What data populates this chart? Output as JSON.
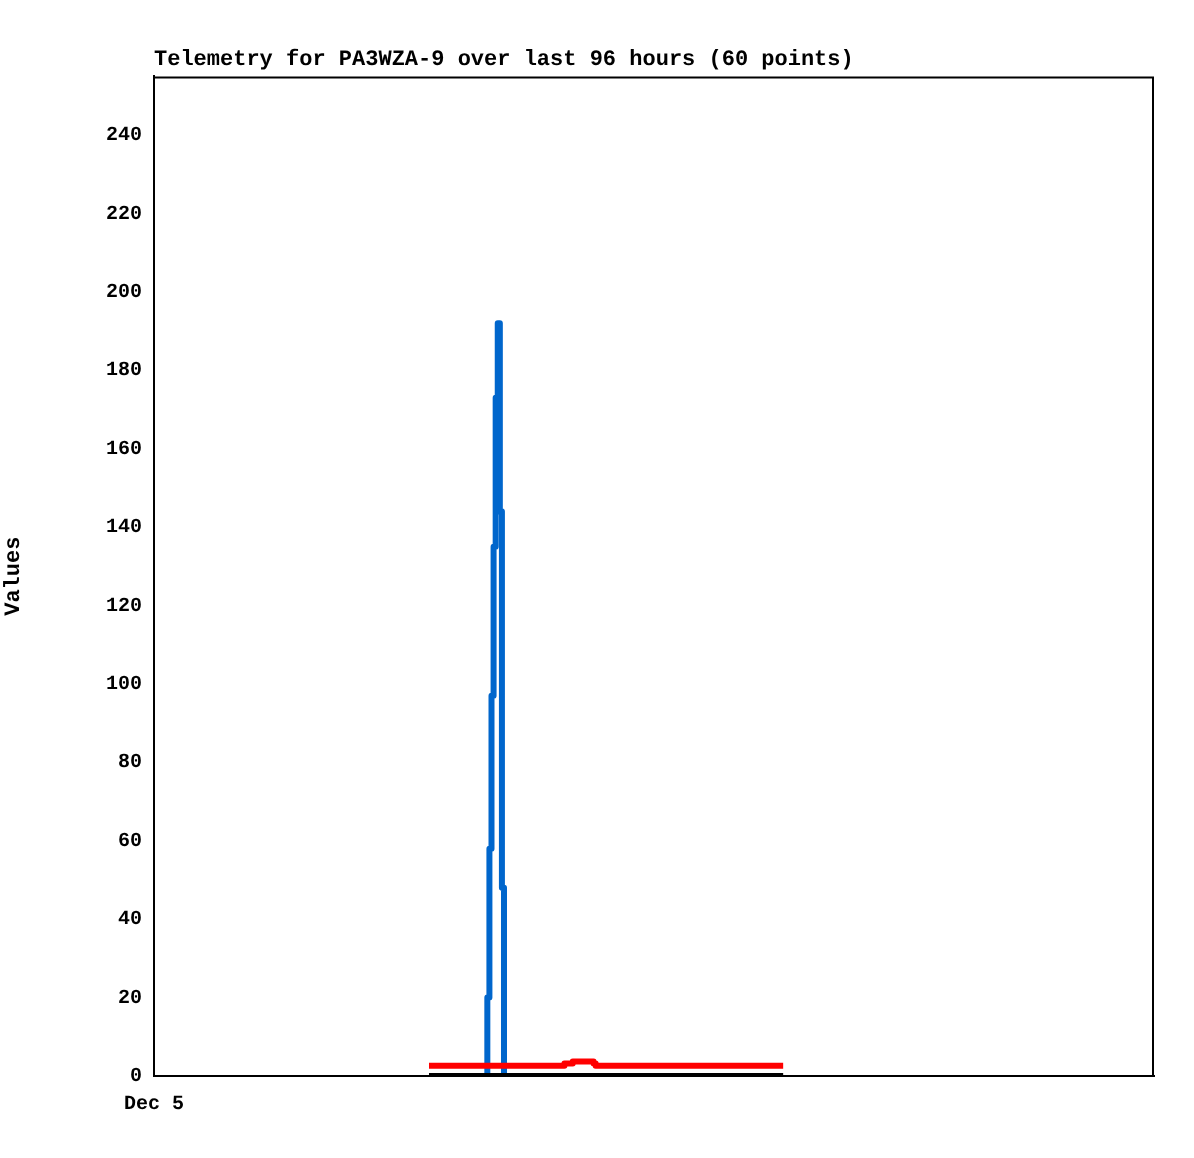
{
  "chart_data": {
    "type": "step",
    "title": "Telemetry for PA3WZA-9 over last 96 hours (60 points)",
    "ylabel": "Values",
    "categories": [
      "Dec 5",
      null,
      null,
      null,
      null,
      null,
      null,
      null,
      null,
      null,
      null,
      null,
      null,
      null,
      null,
      null,
      null,
      null,
      null,
      null,
      null,
      null,
      null,
      null,
      null,
      null,
      null,
      null,
      null,
      null,
      null,
      null,
      null,
      null,
      null,
      null,
      null,
      null,
      null,
      null,
      null,
      null,
      null,
      null,
      null,
      null,
      null,
      null,
      null,
      null,
      null,
      null,
      null,
      null,
      null,
      null,
      null,
      null,
      null,
      null,
      null,
      null,
      null,
      null,
      null,
      null,
      null,
      null,
      null,
      null,
      null,
      null,
      null,
      null,
      null,
      null,
      null,
      null,
      null,
      null,
      null,
      null,
      null,
      null,
      null,
      null,
      null,
      null,
      null,
      null,
      null,
      null,
      null,
      null,
      null,
      null,
      null,
      null,
      null,
      null,
      null,
      null,
      null,
      null,
      null,
      null,
      null,
      null,
      null,
      null,
      null,
      null,
      null,
      null,
      null,
      null,
      null,
      null,
      null,
      null,
      null,
      null,
      null,
      null,
      null,
      null,
      null,
      null,
      null,
      null,
      null,
      null,
      null,
      null,
      null,
      null,
      null,
      null,
      null,
      null,
      null,
      null,
      null,
      null,
      null,
      null,
      null,
      null,
      null,
      null,
      null,
      null,
      null,
      null,
      null,
      null,
      null,
      null,
      null,
      null,
      null,
      null,
      null,
      null,
      null,
      null,
      null,
      null,
      null,
      null,
      null,
      null,
      null,
      null,
      null,
      null,
      null,
      null,
      null,
      null,
      null,
      null,
      null,
      null,
      null,
      null,
      null,
      null,
      null,
      null,
      null,
      null,
      null,
      null,
      null,
      null,
      null,
      null,
      null,
      null,
      null,
      null,
      null,
      null,
      null,
      null,
      null,
      null,
      null,
      null,
      null,
      null,
      null,
      null,
      null,
      null,
      null,
      null,
      null,
      null,
      null,
      null,
      null,
      null,
      null,
      null,
      null,
      null,
      null,
      null,
      null,
      null,
      null,
      null,
      null,
      null,
      null,
      null,
      null,
      null,
      null,
      null,
      null,
      null,
      null,
      null,
      null,
      null,
      null,
      null,
      null,
      null,
      null,
      null,
      null,
      null,
      null,
      null,
      null,
      null,
      null,
      null,
      null,
      null,
      null,
      null,
      null,
      null,
      null,
      null,
      null,
      null,
      null,
      null,
      null,
      null,
      null,
      null,
      null,
      null,
      null,
      null,
      null,
      null,
      null,
      null,
      null,
      null,
      null,
      null,
      null,
      null,
      null,
      null,
      null,
      null,
      null,
      null,
      null,
      null,
      null,
      null,
      null,
      null,
      null,
      null,
      null,
      null,
      null,
      null,
      null,
      null,
      null,
      null,
      null,
      null,
      null,
      null,
      null,
      null,
      null,
      null,
      null,
      null,
      null,
      null,
      null,
      null,
      null,
      null,
      null,
      null,
      null,
      null,
      null,
      null,
      null,
      null,
      null,
      null,
      null,
      null,
      null,
      null,
      null,
      null,
      null,
      null,
      null,
      null,
      null,
      null,
      null,
      null,
      null,
      null,
      null,
      null,
      null,
      null,
      null,
      null,
      null,
      null,
      null,
      null,
      null,
      null,
      null,
      null,
      null,
      null,
      null,
      null,
      null,
      null,
      null,
      null,
      null,
      null,
      null,
      null,
      null,
      null,
      null,
      null,
      null,
      null,
      null,
      null,
      null,
      null,
      null,
      null,
      null,
      null,
      null,
      null,
      null,
      null,
      null,
      null,
      null,
      null,
      null,
      null,
      null,
      null,
      null,
      null,
      null,
      null,
      null,
      null,
      null,
      null,
      null,
      null,
      null,
      null,
      null,
      null,
      null,
      null,
      null,
      null,
      null,
      null,
      null,
      null,
      null,
      null,
      null,
      null,
      null,
      null,
      null,
      null,
      null,
      null,
      null,
      null,
      null,
      null,
      null,
      null,
      null,
      null,
      null,
      null,
      null,
      null,
      null,
      null,
      null,
      null,
      null,
      null,
      null,
      null,
      null,
      null,
      null,
      null,
      null,
      null,
      null,
      null,
      null,
      null,
      null,
      null,
      null,
      null,
      null,
      null,
      null,
      null,
      null,
      null,
      null
    ],
    "ylim": [
      0,
      255
    ],
    "yticks": [
      0,
      20,
      40,
      60,
      80,
      100,
      120,
      140,
      160,
      180,
      200,
      220,
      240
    ],
    "grid": false,
    "legend": false,
    "series": [
      {
        "color": "#000000",
        "values": [
          null,
          null,
          null,
          null,
          null,
          null,
          null,
          null,
          null,
          null,
          null,
          null,
          null,
          null,
          null,
          null,
          null,
          null,
          null,
          null,
          null,
          null,
          null,
          null,
          null,
          null,
          null,
          null,
          null,
          null,
          null,
          null,
          null,
          null,
          null,
          null,
          null,
          null,
          null,
          null,
          null,
          null,
          null,
          null,
          null,
          null,
          null,
          null,
          null,
          null,
          null,
          null,
          null,
          null,
          null,
          null,
          null,
          null,
          null,
          null,
          null,
          null,
          null,
          null,
          null,
          null,
          null,
          null,
          null,
          null,
          null,
          null,
          null,
          null,
          null,
          null,
          null,
          null,
          null,
          null,
          null,
          null,
          null,
          null,
          null,
          null,
          null,
          null,
          null,
          null,
          null,
          null,
          null,
          null,
          null,
          null,
          null,
          null,
          null,
          null,
          null,
          null,
          null,
          null,
          null,
          null,
          null,
          null,
          null,
          null,
          null,
          null,
          null,
          null,
          null,
          null,
          null,
          null,
          null,
          null,
          null,
          null,
          null,
          null,
          null,
          null,
          null,
          null,
          null,
          null,
          null,
          null,
          0,
          0,
          0,
          0,
          0,
          0,
          0,
          0,
          0,
          0,
          0,
          0,
          0,
          0,
          0,
          0,
          0,
          0,
          0,
          0,
          0,
          0,
          0,
          0,
          0,
          0,
          0,
          0,
          0,
          0,
          0,
          0,
          0,
          0,
          0,
          0,
          0,
          0,
          0,
          0,
          0,
          0,
          0,
          0,
          0,
          0,
          0,
          0,
          0,
          0,
          0,
          0,
          0,
          0,
          0,
          0,
          0,
          0,
          0,
          0,
          0,
          0,
          0,
          0,
          0,
          0,
          0,
          0,
          0,
          0,
          0,
          0,
          0,
          0,
          0,
          0,
          0,
          0,
          0,
          0,
          0,
          0,
          0,
          0,
          0,
          0,
          0,
          0,
          0,
          0,
          0,
          0,
          0,
          0,
          0,
          0,
          0,
          0,
          0,
          0,
          0,
          0,
          0,
          0,
          0,
          0,
          0,
          0,
          0,
          0,
          0,
          0,
          0,
          0,
          0,
          0,
          0,
          0,
          0,
          0,
          0,
          0,
          0,
          0,
          0,
          0,
          0,
          0,
          0,
          0,
          0,
          0,
          0,
          0,
          0,
          0,
          0,
          0,
          0,
          0,
          0,
          0,
          0,
          0,
          0,
          0,
          0,
          0,
          0,
          0,
          0,
          0,
          0,
          0,
          0,
          0,
          0,
          0,
          0,
          0,
          0,
          0,
          0,
          0,
          0,
          0,
          0,
          0,
          0,
          0,
          0,
          null,
          null,
          null,
          null,
          null,
          null,
          null,
          null,
          null,
          null,
          null,
          null,
          null,
          null,
          null,
          null,
          null,
          null,
          null,
          null,
          null,
          null,
          null,
          null,
          null,
          null,
          null,
          null,
          null,
          null,
          null,
          null,
          null,
          null,
          null,
          null,
          null,
          null,
          null,
          null,
          null,
          null,
          null,
          null,
          null,
          null,
          null,
          null,
          null,
          null,
          null,
          null,
          null,
          null,
          null,
          null,
          null,
          null,
          null,
          null,
          null,
          null,
          null,
          null,
          null,
          null,
          null,
          null,
          null,
          null,
          null,
          null,
          null,
          null,
          null,
          null,
          null,
          null,
          null,
          null,
          null,
          null,
          null,
          null,
          null,
          null,
          null,
          null,
          null,
          null,
          null,
          null,
          null,
          null,
          null,
          null,
          null,
          null,
          null,
          null,
          null,
          null,
          null,
          null,
          null,
          null,
          null,
          null,
          null,
          null,
          null,
          null,
          null,
          null,
          null,
          null,
          null,
          null,
          null,
          null,
          null,
          null,
          null,
          null,
          null,
          null,
          null,
          null,
          null,
          null,
          null,
          null,
          null,
          null,
          null,
          null,
          null,
          null,
          null,
          null,
          null,
          null,
          null,
          null,
          null,
          null,
          null,
          null,
          null,
          null,
          null,
          null,
          null,
          null,
          null,
          null,
          null,
          null,
          null,
          null,
          null,
          null,
          null,
          null,
          null,
          null,
          null,
          null,
          null,
          null,
          null,
          null,
          null,
          null,
          null,
          null,
          null,
          null
        ]
      },
      {
        "color": "#ff0000",
        "values": [
          null,
          null,
          null,
          null,
          null,
          null,
          null,
          null,
          null,
          null,
          null,
          null,
          null,
          null,
          null,
          null,
          null,
          null,
          null,
          null,
          null,
          null,
          null,
          null,
          null,
          null,
          null,
          null,
          null,
          null,
          null,
          null,
          null,
          null,
          null,
          null,
          null,
          null,
          null,
          null,
          null,
          null,
          null,
          null,
          null,
          null,
          null,
          null,
          null,
          null,
          null,
          null,
          null,
          null,
          null,
          null,
          null,
          null,
          null,
          null,
          null,
          null,
          null,
          null,
          null,
          null,
          null,
          null,
          null,
          null,
          null,
          null,
          null,
          null,
          null,
          null,
          null,
          null,
          null,
          null,
          null,
          null,
          null,
          null,
          null,
          null,
          null,
          null,
          null,
          null,
          null,
          null,
          null,
          null,
          null,
          null,
          null,
          null,
          null,
          null,
          null,
          null,
          null,
          null,
          null,
          null,
          null,
          null,
          null,
          null,
          null,
          null,
          null,
          null,
          null,
          null,
          null,
          null,
          null,
          null,
          null,
          null,
          null,
          null,
          null,
          null,
          null,
          null,
          null,
          null,
          null,
          null,
          2.6,
          2.6,
          2.6,
          2.6,
          2.6,
          2.6,
          2.6,
          2.6,
          2.6,
          2.6,
          2.6,
          2.6,
          2.6,
          2.6,
          2.6,
          2.6,
          2.6,
          2.6,
          2.6,
          2.6,
          2.6,
          2.6,
          2.6,
          2.6,
          2.6,
          2.6,
          2.6,
          2.6,
          2.6,
          2.6,
          2.6,
          2.6,
          2.6,
          2.6,
          2.6,
          2.6,
          2.6,
          2.6,
          2.6,
          2.6,
          2.6,
          2.6,
          2.6,
          2.6,
          2.6,
          2.6,
          2.6,
          2.6,
          2.6,
          2.6,
          2.6,
          2.6,
          2.6,
          2.6,
          2.6,
          2.6,
          2.6,
          2.6,
          2.6,
          2.6,
          2.6,
          2.6,
          2.6,
          2.6,
          2.6,
          3.2,
          3.2,
          3.2,
          3.2,
          3.7,
          3.7,
          3.7,
          3.7,
          3.7,
          3.7,
          3.7,
          3.7,
          3.7,
          3.7,
          3.2,
          2.6,
          2.6,
          2.6,
          2.6,
          2.6,
          2.6,
          2.6,
          2.6,
          2.6,
          2.6,
          2.6,
          2.6,
          2.6,
          2.6,
          2.6,
          2.6,
          2.6,
          2.6,
          2.6,
          2.6,
          2.6,
          2.6,
          2.6,
          2.6,
          2.6,
          2.6,
          2.6,
          2.6,
          2.6,
          2.6,
          2.6,
          2.6,
          2.6,
          2.6,
          2.6,
          2.6,
          2.6,
          2.6,
          2.6,
          2.6,
          2.6,
          2.6,
          2.6,
          2.6,
          2.6,
          2.6,
          2.6,
          2.6,
          2.6,
          2.6,
          2.6,
          2.6,
          2.6,
          2.6,
          2.6,
          2.6,
          2.6,
          2.6,
          2.6,
          2.6,
          2.6,
          2.6,
          2.6,
          2.6,
          2.6,
          2.6,
          2.6,
          2.6,
          2.6,
          2.6,
          2.6,
          2.6,
          2.6,
          2.6,
          2.6,
          2.6,
          2.6,
          2.6,
          2.6,
          2.6,
          2.6,
          2.6,
          2.6,
          2.6,
          2.6,
          2.6,
          2.6,
          2.6,
          2.6,
          2.6,
          2.6,
          null,
          null,
          null,
          null,
          null,
          null,
          null,
          null,
          null,
          null,
          null,
          null,
          null,
          null,
          null,
          null,
          null,
          null,
          null,
          null,
          null,
          null,
          null,
          null,
          null,
          null,
          null,
          null,
          null,
          null,
          null,
          null,
          null,
          null,
          null,
          null,
          null,
          null,
          null,
          null,
          null,
          null,
          null,
          null,
          null,
          null,
          null,
          null,
          null,
          null,
          null,
          null,
          null,
          null,
          null,
          null,
          null,
          null,
          null,
          null,
          null,
          null,
          null,
          null,
          null,
          null,
          null,
          null,
          null,
          null,
          null,
          null,
          null,
          null,
          null,
          null,
          null,
          null,
          null,
          null,
          null,
          null,
          null,
          null,
          null,
          null,
          null,
          null,
          null,
          null,
          null,
          null,
          null,
          null,
          null,
          null,
          null,
          null,
          null,
          null,
          null,
          null,
          null,
          null,
          null,
          null,
          null,
          null,
          null,
          null,
          null,
          null,
          null,
          null,
          null,
          null,
          null,
          null,
          null,
          null,
          null,
          null,
          null,
          null,
          null,
          null,
          null,
          null,
          null,
          null,
          null,
          null,
          null,
          null,
          null,
          null,
          null,
          null,
          null,
          null,
          null,
          null,
          null,
          null,
          null,
          null,
          null,
          null,
          null,
          null,
          null,
          null,
          null,
          null,
          null,
          null,
          null,
          null,
          null,
          null,
          null,
          null,
          null,
          null,
          null,
          null,
          null,
          null,
          null,
          null,
          null,
          null,
          null,
          null,
          null,
          null,
          null,
          null
        ]
      },
      {
        "color": "#0066cc",
        "values": [
          null,
          null,
          null,
          null,
          null,
          null,
          null,
          null,
          null,
          null,
          null,
          null,
          null,
          null,
          null,
          null,
          null,
          null,
          null,
          null,
          null,
          null,
          null,
          null,
          null,
          null,
          null,
          null,
          null,
          null,
          null,
          null,
          null,
          null,
          null,
          null,
          null,
          null,
          null,
          null,
          null,
          null,
          null,
          null,
          null,
          null,
          null,
          null,
          null,
          null,
          null,
          null,
          null,
          null,
          null,
          null,
          null,
          null,
          null,
          null,
          null,
          null,
          null,
          null,
          null,
          null,
          null,
          null,
          null,
          null,
          null,
          null,
          null,
          null,
          null,
          null,
          null,
          null,
          null,
          null,
          null,
          null,
          null,
          null,
          null,
          null,
          null,
          null,
          null,
          null,
          null,
          null,
          null,
          null,
          null,
          null,
          null,
          null,
          null,
          null,
          null,
          null,
          null,
          null,
          null,
          null,
          null,
          null,
          null,
          null,
          null,
          null,
          null,
          null,
          null,
          null,
          null,
          null,
          null,
          null,
          null,
          null,
          null,
          null,
          null,
          null,
          null,
          null,
          null,
          null,
          null,
          null,
          null,
          null,
          null,
          null,
          null,
          null,
          null,
          null,
          null,
          null,
          null,
          null,
          null,
          null,
          null,
          null,
          null,
          null,
          null,
          null,
          null,
          null,
          null,
          null,
          null,
          null,
          null,
          0,
          20,
          58,
          97,
          135,
          173,
          192,
          144,
          48,
          0,
          null,
          null,
          null,
          null,
          null,
          null,
          null,
          null,
          null,
          null,
          null,
          null,
          null,
          null,
          null,
          null,
          null,
          null,
          null,
          null,
          null,
          null,
          null,
          null,
          null,
          null,
          null,
          null,
          null,
          null,
          null,
          null,
          null,
          null,
          null,
          null,
          null,
          null,
          null,
          null,
          null,
          null,
          null,
          null,
          null,
          null,
          null,
          null,
          null,
          null,
          null,
          null,
          null,
          null,
          null,
          null,
          null,
          null,
          null,
          null,
          null,
          null,
          null,
          null,
          null,
          null,
          null,
          null,
          null,
          null,
          null,
          null,
          null,
          null,
          null,
          null,
          null,
          null,
          null,
          null,
          null,
          null,
          null,
          null,
          null,
          null,
          null,
          null,
          null,
          null,
          null,
          null,
          null,
          null,
          null,
          null,
          null,
          null,
          null,
          null,
          null,
          null,
          null,
          null,
          null,
          null,
          null,
          null,
          null,
          null,
          null,
          null,
          null,
          null,
          null,
          null,
          null,
          null,
          null,
          null,
          null,
          null,
          null,
          null,
          null,
          null,
          null,
          null,
          null,
          null,
          null,
          null,
          null,
          null,
          null,
          null,
          null,
          null,
          null,
          null,
          null,
          null,
          null,
          null,
          null,
          null,
          null,
          null,
          null,
          null,
          null,
          null,
          null,
          null,
          null,
          null,
          null,
          null,
          null,
          null,
          null,
          null,
          null,
          null,
          null,
          null,
          null,
          null,
          null,
          null,
          null,
          null,
          null,
          null,
          null,
          null,
          null,
          null,
          null,
          null,
          null,
          null,
          null,
          null,
          null,
          null,
          null,
          null,
          null,
          null,
          null,
          null,
          null,
          null,
          null,
          null,
          null,
          null,
          null,
          null,
          null,
          null,
          null,
          null,
          null,
          null,
          null,
          null,
          null,
          null,
          null,
          null,
          null,
          null,
          null,
          null,
          null,
          null,
          null,
          null,
          null,
          null,
          null,
          null,
          null,
          null,
          null,
          null,
          null,
          null,
          null,
          null,
          null,
          null,
          null,
          null,
          null,
          null,
          null,
          null,
          null,
          null,
          null,
          null,
          null,
          null,
          null,
          null,
          null,
          null,
          null,
          null,
          null,
          null,
          null,
          null,
          null,
          null,
          null,
          null,
          null,
          null,
          null,
          null,
          null,
          null,
          null,
          null,
          null,
          null,
          null,
          null,
          null,
          null,
          null,
          null,
          null,
          null,
          null,
          null,
          null,
          null,
          null,
          null,
          null,
          null,
          null,
          null,
          null,
          null,
          null,
          null,
          null,
          null,
          null,
          null,
          null,
          null,
          null,
          null,
          null,
          null,
          null,
          null,
          null,
          null,
          null,
          null,
          null,
          null,
          null,
          null
        ]
      }
    ]
  }
}
